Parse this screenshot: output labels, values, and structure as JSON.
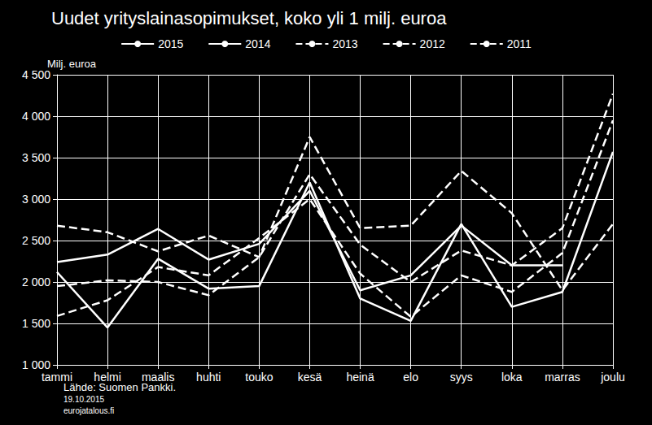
{
  "chart_data": {
    "type": "line",
    "title": "Uudet yrityslainasopimukset, koko yli 1 milj. euroa",
    "ylabel": "Milj. euroa",
    "annotations": [
      "Lähde: Suomen Pankki.",
      "19.10.2015",
      "eurojatalous.fi"
    ],
    "categories": [
      "tammi",
      "helmi",
      "maalis",
      "huhti",
      "touko",
      "kesä",
      "heinä",
      "elo",
      "syys",
      "loka",
      "marras",
      "joulu"
    ],
    "series": [
      {
        "name": "2015",
        "color": "#ffffff",
        "line_style": "solid",
        "values": [
          2240,
          2330,
          2640,
          2270,
          2460,
          3100,
          1900,
          2080,
          2680,
          2200,
          2200,
          null
        ]
      },
      {
        "name": "2014",
        "color": "#ffffff",
        "line_style": "solid",
        "values": [
          2120,
          1450,
          2280,
          1920,
          1950,
          3200,
          1800,
          1530,
          2700,
          1700,
          1880,
          3570
        ]
      },
      {
        "name": "2013",
        "color": "#ffffff",
        "line_style": "dashed",
        "values": [
          1590,
          1780,
          2180,
          2080,
          2530,
          3000,
          2100,
          1580,
          2080,
          1880,
          2350,
          3950
        ]
      },
      {
        "name": "2012",
        "color": "#ffffff",
        "line_style": "dashed",
        "values": [
          1950,
          2020,
          2000,
          1840,
          2300,
          3300,
          2450,
          2000,
          2380,
          2200,
          2650,
          4270
        ]
      },
      {
        "name": "2011",
        "color": "#ffffff",
        "line_style": "dashed",
        "values": [
          2680,
          2600,
          2370,
          2560,
          2300,
          3750,
          2650,
          2680,
          3340,
          2830,
          1900,
          2700
        ]
      }
    ],
    "ylim": [
      1000,
      4500
    ],
    "yticks": [
      {
        "value": 1000,
        "label": "1 000"
      },
      {
        "value": 1500,
        "label": "1 500"
      },
      {
        "value": 2000,
        "label": "2 000"
      },
      {
        "value": 2500,
        "label": "2 500"
      },
      {
        "value": 3000,
        "label": "3 000"
      },
      {
        "value": 3500,
        "label": "3 500"
      },
      {
        "value": 4000,
        "label": "4 000"
      },
      {
        "value": 4500,
        "label": "4 500"
      }
    ],
    "grid": true,
    "legend": "top"
  }
}
